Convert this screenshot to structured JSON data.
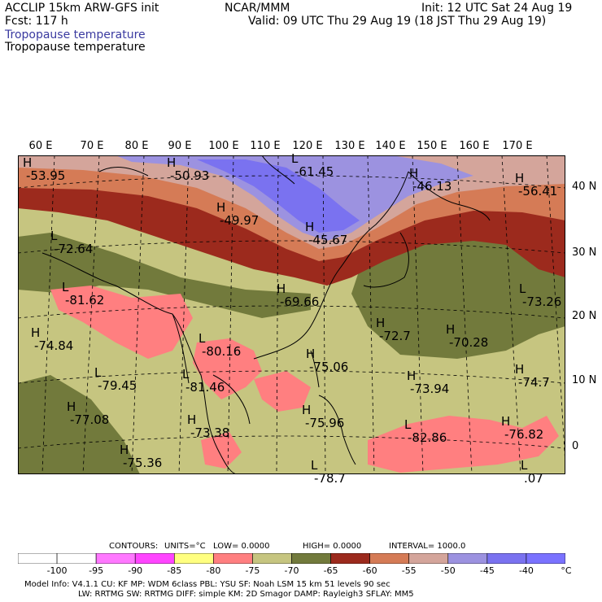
{
  "header": {
    "model": "ACCLIP 15km ARW-GFS init",
    "org": "NCAR/MMM",
    "init": "Init: 12 UTC Sat 24 Aug 19",
    "fcst": "Fcst:  117 h",
    "valid": "Valid: 09 UTC Thu 29 Aug 19 (18 JST Thu 29 Aug 19)",
    "field_title_1": "Tropopause temperature",
    "field_title_2": "Tropopause temperature"
  },
  "axes": {
    "lon_labels": [
      "60 E",
      "70 E",
      "80 E",
      "90 E",
      "100 E",
      "110 E",
      "120 E",
      "130 E",
      "140 E",
      "150 E",
      "160 E",
      "170 E"
    ],
    "lat_labels": [
      "40 N",
      "30 N",
      "20 N",
      "10 N",
      "0"
    ]
  },
  "markers": [
    {
      "type": "H",
      "value": "-53.95"
    },
    {
      "type": "H",
      "value": "-50.93"
    },
    {
      "type": "L",
      "value": "-61.45"
    },
    {
      "type": "H",
      "value": "-46.13"
    },
    {
      "type": "H",
      "value": "-56.41"
    },
    {
      "type": "H",
      "value": "-49.97"
    },
    {
      "type": "H",
      "value": "-45.67"
    },
    {
      "type": "L",
      "value": "-72.64"
    },
    {
      "type": "L",
      "value": "-81.62"
    },
    {
      "type": "H",
      "value": "-69.66"
    },
    {
      "type": "L",
      "value": "-73.26"
    },
    {
      "type": "H",
      "value": "-74.84"
    },
    {
      "type": "L",
      "value": "-80.16"
    },
    {
      "type": "H",
      "value": "-72.7"
    },
    {
      "type": "H",
      "value": "-70.28"
    },
    {
      "type": "H",
      "value": "-75.06"
    },
    {
      "type": "L",
      "value": "-79.45"
    },
    {
      "type": "L",
      "value": "-81.46"
    },
    {
      "type": "H",
      "value": "-73.94"
    },
    {
      "type": "H",
      "value": "-74.7"
    },
    {
      "type": "H",
      "value": "-77.08"
    },
    {
      "type": "H",
      "value": "-73.38"
    },
    {
      "type": "H",
      "value": "-75.96"
    },
    {
      "type": "L",
      "value": "-82.86"
    },
    {
      "type": "H",
      "value": "-76.82"
    },
    {
      "type": "H",
      "value": "-75.36"
    },
    {
      "type": "L",
      "value": "-78.7"
    },
    {
      "type": "L",
      "value": ".07"
    }
  ],
  "contour_info": {
    "contours": "CONTOURS:",
    "units": "UNITS=°C",
    "low": "LOW=  0.0000",
    "high": "HIGH=  0.0000",
    "interval": "INTERVAL=   1000.0"
  },
  "colorbar": {
    "colors": [
      "#ffffff",
      "#ff78ff",
      "#ff45ff",
      "#ffff80",
      "#ff7f80",
      "#c6c580",
      "#727a3c",
      "#9c2a1d",
      "#d57b56",
      "#d4a59b",
      "#9c92e0",
      "#7a72f0",
      "#7a72ff"
    ],
    "ticks": [
      "-100",
      "-95",
      "-90",
      "-85",
      "-80",
      "-75",
      "-70",
      "-65",
      "-60",
      "-55",
      "-50",
      "-45",
      "-40"
    ],
    "unit": "°C"
  },
  "footer": {
    "line1": "Model Info: V4.1.1     CU: KF        MP: WDM 6class   PBL: YSU        SF: Noah LSM      15 km    51 levels    90 sec",
    "line2": "LW: RRTMG     SW: RRTMG   DIFF: simple KM: 2D Smagor DAMP: Rayleigh3  SFLAY: MM5"
  }
}
